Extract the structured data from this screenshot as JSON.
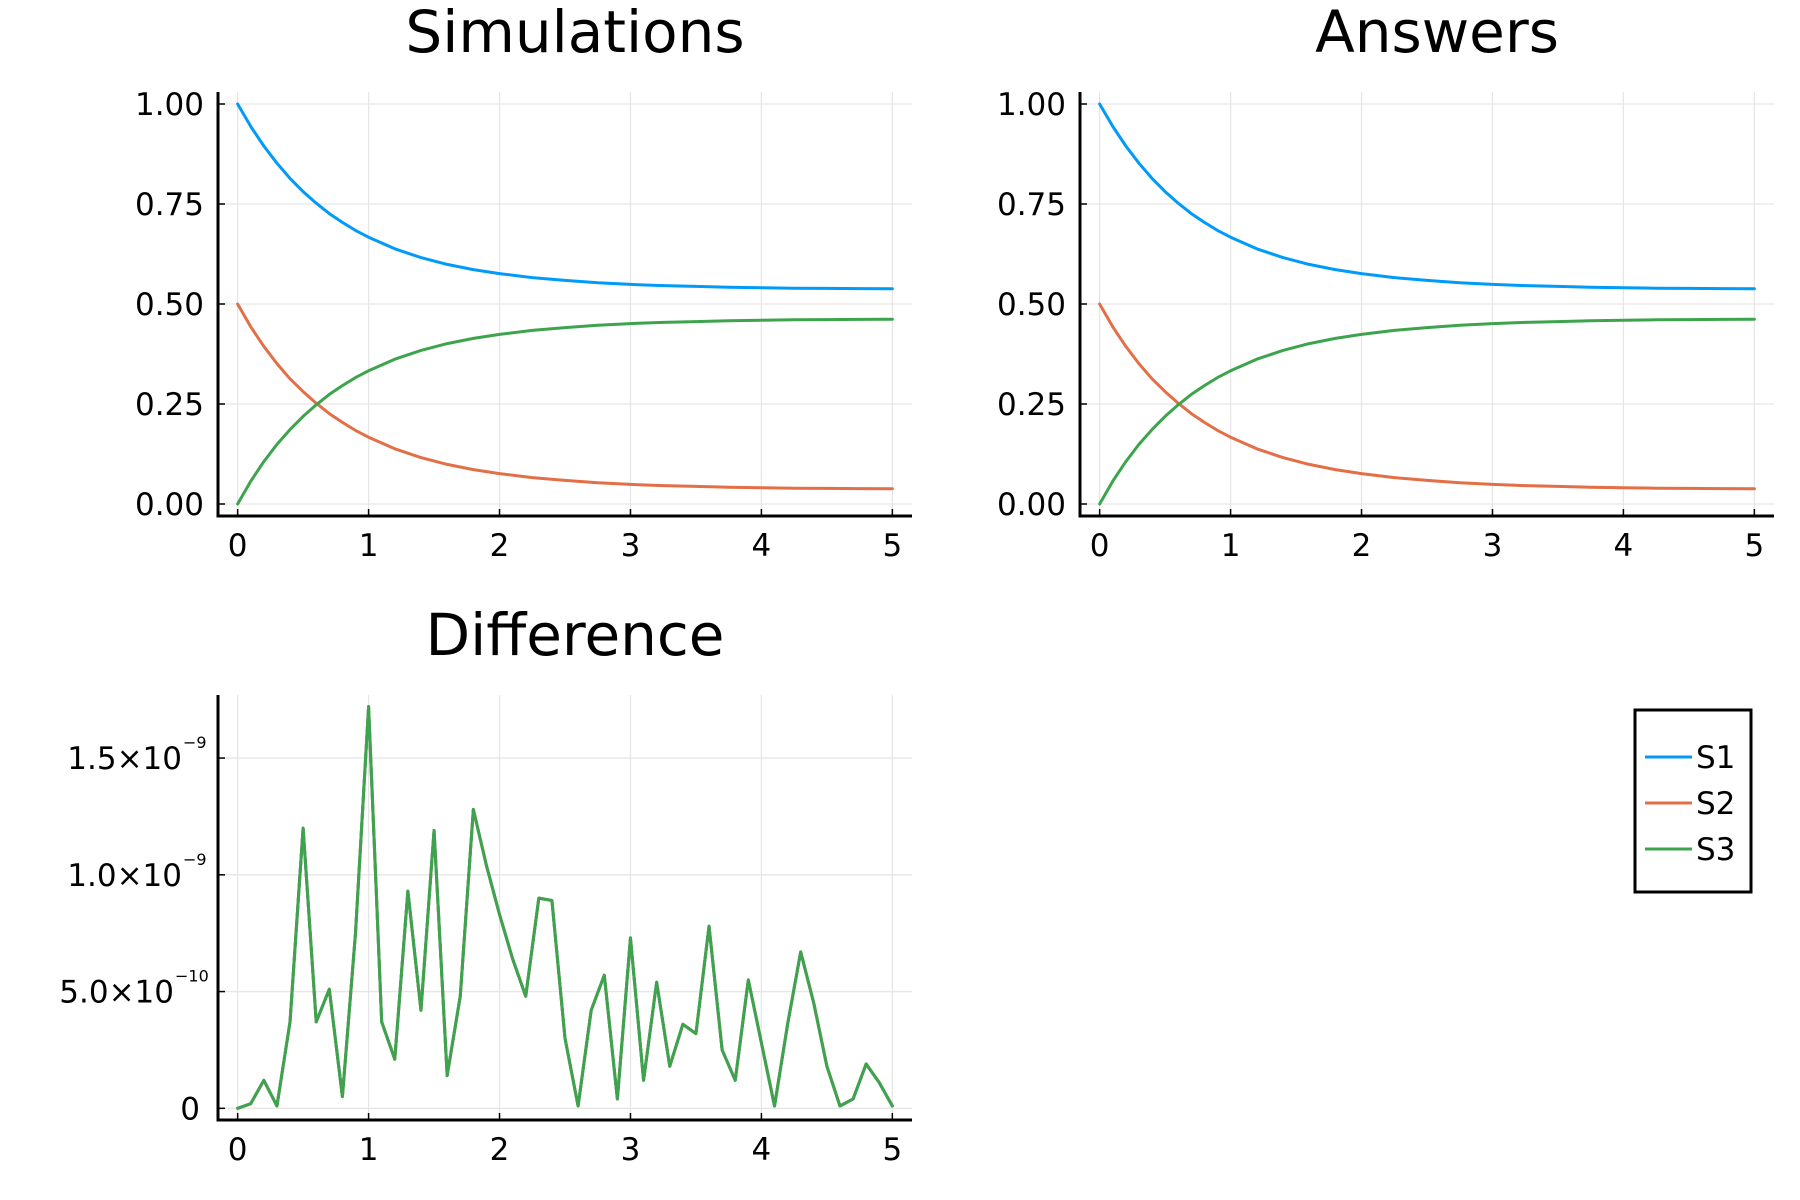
{
  "chart_data": [
    {
      "type": "line",
      "title": "Simulations",
      "xlabel": "",
      "ylabel": "",
      "xlim": [
        -0.15,
        5.15
      ],
      "ylim": [
        -0.03,
        1.03
      ],
      "xticks": [
        0,
        1,
        2,
        3,
        4,
        5
      ],
      "xtick_labels": [
        "0",
        "1",
        "2",
        "3",
        "4",
        "5"
      ],
      "yticks": [
        0,
        0.25,
        0.5,
        0.75,
        1.0
      ],
      "ytick_labels": [
        "0.00",
        "0.25",
        "0.50",
        "0.75",
        "1.00"
      ],
      "grid": true,
      "x": [
        0,
        0.1,
        0.2,
        0.3,
        0.4,
        0.5,
        0.6,
        0.7,
        0.8,
        0.9,
        1.0,
        1.2,
        1.4,
        1.6,
        1.8,
        2.0,
        2.25,
        2.5,
        2.75,
        3.0,
        3.25,
        3.5,
        3.75,
        4.0,
        4.25,
        4.5,
        4.75,
        5.0
      ],
      "series": [
        {
          "name": "S1",
          "color": "#009af9",
          "values": [
            1.0,
            0.944,
            0.895,
            0.852,
            0.814,
            0.781,
            0.752,
            0.726,
            0.704,
            0.684,
            0.667,
            0.638,
            0.616,
            0.599,
            0.586,
            0.576,
            0.566,
            0.559,
            0.553,
            0.549,
            0.546,
            0.544,
            0.542,
            0.5405,
            0.5395,
            0.539,
            0.5385,
            0.538
          ]
        },
        {
          "name": "S2",
          "color": "#e26f46",
          "values": [
            0.5,
            0.443,
            0.394,
            0.351,
            0.313,
            0.281,
            0.252,
            0.226,
            0.204,
            0.184,
            0.167,
            0.138,
            0.116,
            0.099,
            0.086,
            0.076,
            0.066,
            0.059,
            0.053,
            0.049,
            0.046,
            0.044,
            0.042,
            0.0405,
            0.0395,
            0.039,
            0.0385,
            0.038
          ]
        },
        {
          "name": "S3",
          "color": "#3da44d",
          "values": [
            0.0,
            0.057,
            0.106,
            0.149,
            0.186,
            0.219,
            0.248,
            0.274,
            0.296,
            0.316,
            0.333,
            0.362,
            0.384,
            0.401,
            0.414,
            0.424,
            0.434,
            0.441,
            0.447,
            0.451,
            0.454,
            0.456,
            0.458,
            0.4595,
            0.4605,
            0.461,
            0.4615,
            0.462
          ]
        }
      ]
    },
    {
      "type": "line",
      "title": "Answers",
      "xlabel": "",
      "ylabel": "",
      "xlim": [
        -0.15,
        5.15
      ],
      "ylim": [
        -0.03,
        1.03
      ],
      "xticks": [
        0,
        1,
        2,
        3,
        4,
        5
      ],
      "xtick_labels": [
        "0",
        "1",
        "2",
        "3",
        "4",
        "5"
      ],
      "yticks": [
        0,
        0.25,
        0.5,
        0.75,
        1.0
      ],
      "ytick_labels": [
        "0.00",
        "0.25",
        "0.50",
        "0.75",
        "1.00"
      ],
      "grid": true,
      "x": [
        0,
        0.1,
        0.2,
        0.3,
        0.4,
        0.5,
        0.6,
        0.7,
        0.8,
        0.9,
        1.0,
        1.2,
        1.4,
        1.6,
        1.8,
        2.0,
        2.25,
        2.5,
        2.75,
        3.0,
        3.25,
        3.5,
        3.75,
        4.0,
        4.25,
        4.5,
        4.75,
        5.0
      ],
      "series": [
        {
          "name": "S1",
          "color": "#009af9",
          "values": [
            1.0,
            0.944,
            0.895,
            0.852,
            0.814,
            0.781,
            0.752,
            0.726,
            0.704,
            0.684,
            0.667,
            0.638,
            0.616,
            0.599,
            0.586,
            0.576,
            0.566,
            0.559,
            0.553,
            0.549,
            0.546,
            0.544,
            0.542,
            0.5405,
            0.5395,
            0.539,
            0.5385,
            0.538
          ]
        },
        {
          "name": "S2",
          "color": "#e26f46",
          "values": [
            0.5,
            0.443,
            0.394,
            0.351,
            0.313,
            0.281,
            0.252,
            0.226,
            0.204,
            0.184,
            0.167,
            0.138,
            0.116,
            0.099,
            0.086,
            0.076,
            0.066,
            0.059,
            0.053,
            0.049,
            0.046,
            0.044,
            0.042,
            0.0405,
            0.0395,
            0.039,
            0.0385,
            0.038
          ]
        },
        {
          "name": "S3",
          "color": "#3da44d",
          "values": [
            0.0,
            0.057,
            0.106,
            0.149,
            0.186,
            0.219,
            0.248,
            0.274,
            0.296,
            0.316,
            0.333,
            0.362,
            0.384,
            0.401,
            0.414,
            0.424,
            0.434,
            0.441,
            0.447,
            0.451,
            0.454,
            0.456,
            0.458,
            0.4595,
            0.4605,
            0.461,
            0.4615,
            0.462
          ]
        }
      ]
    },
    {
      "type": "line",
      "title": "Difference",
      "xlabel": "",
      "ylabel": "",
      "xlim": [
        -0.15,
        5.15
      ],
      "ylim": [
        -5e-11,
        1.77e-09
      ],
      "xticks": [
        0,
        1,
        2,
        3,
        4,
        5
      ],
      "xtick_labels": [
        "0",
        "1",
        "2",
        "3",
        "4",
        "5"
      ],
      "yticks": [
        0,
        5e-10,
        1e-09,
        1.5e-09
      ],
      "ytick_labels": [
        {
          "mantissa": "0",
          "exponent": ""
        },
        {
          "mantissa": "5.0×10",
          "exponent": "−10"
        },
        {
          "mantissa": "1.0×10",
          "exponent": "−9"
        },
        {
          "mantissa": "1.5×10",
          "exponent": "−9"
        }
      ],
      "grid": true,
      "x": [
        0,
        0.1,
        0.2,
        0.3,
        0.4,
        0.5,
        0.6,
        0.7,
        0.8,
        0.9,
        1.0,
        1.1,
        1.2,
        1.3,
        1.4,
        1.5,
        1.6,
        1.7,
        1.8,
        1.9,
        2.0,
        2.1,
        2.2,
        2.3,
        2.4,
        2.5,
        2.6,
        2.7,
        2.8,
        2.9,
        3.0,
        3.1,
        3.2,
        3.3,
        3.4,
        3.5,
        3.6,
        3.7,
        3.8,
        3.9,
        4.0,
        4.1,
        4.2,
        4.3,
        4.4,
        4.5,
        4.6,
        4.7,
        4.8,
        4.9,
        5.0
      ],
      "series": [
        {
          "name": "S1",
          "color": "#009af9",
          "values": [
            0,
            2e-11,
            1.2e-10,
            1e-11,
            3.7e-10,
            1.2e-09,
            3.7e-10,
            5.1e-10,
            5e-11,
            7.5e-10,
            1.72e-09,
            3.7e-10,
            2.1e-10,
            9.3e-10,
            4.2e-10,
            1.19e-09,
            1.4e-10,
            4.8e-10,
            1.28e-09,
            1.04e-09,
            8.3e-10,
            6.4e-10,
            4.8e-10,
            9e-10,
            8.9e-10,
            3e-10,
            1e-11,
            4.2e-10,
            5.7e-10,
            4e-11,
            7.3e-10,
            1.2e-10,
            5.4e-10,
            1.8e-10,
            3.6e-10,
            3.2e-10,
            7.8e-10,
            2.5e-10,
            1.2e-10,
            5.5e-10,
            2.8e-10,
            1e-11,
            3.6e-10,
            6.7e-10,
            4.5e-10,
            1.8e-10,
            1e-11,
            4e-11,
            1.9e-10,
            1.1e-10,
            1e-11
          ]
        },
        {
          "name": "S2",
          "color": "#e26f46",
          "values": [
            0,
            2e-11,
            1.2e-10,
            1e-11,
            3.7e-10,
            1.2e-09,
            3.7e-10,
            5.1e-10,
            5e-11,
            7.5e-10,
            1.72e-09,
            3.7e-10,
            2.1e-10,
            9.3e-10,
            4.2e-10,
            1.19e-09,
            1.4e-10,
            4.8e-10,
            1.28e-09,
            1.04e-09,
            8.3e-10,
            6.4e-10,
            4.8e-10,
            9e-10,
            8.9e-10,
            3e-10,
            1e-11,
            4.2e-10,
            5.7e-10,
            4e-11,
            7.3e-10,
            1.2e-10,
            5.4e-10,
            1.8e-10,
            3.6e-10,
            3.2e-10,
            7.8e-10,
            2.5e-10,
            1.2e-10,
            5.5e-10,
            2.8e-10,
            1e-11,
            3.6e-10,
            6.7e-10,
            4.5e-10,
            1.8e-10,
            1e-11,
            4e-11,
            1.9e-10,
            1.1e-10,
            1e-11
          ]
        },
        {
          "name": "S3",
          "color": "#3da44d",
          "values": [
            0,
            2e-11,
            1.2e-10,
            1e-11,
            3.7e-10,
            1.2e-09,
            3.7e-10,
            5.1e-10,
            5e-11,
            7.5e-10,
            1.72e-09,
            3.7e-10,
            2.1e-10,
            9.3e-10,
            4.2e-10,
            1.19e-09,
            1.4e-10,
            4.8e-10,
            1.28e-09,
            1.04e-09,
            8.3e-10,
            6.4e-10,
            4.8e-10,
            9e-10,
            8.9e-10,
            3e-10,
            1e-11,
            4.2e-10,
            5.7e-10,
            4e-11,
            7.3e-10,
            1.2e-10,
            5.4e-10,
            1.8e-10,
            3.6e-10,
            3.2e-10,
            7.8e-10,
            2.5e-10,
            1.2e-10,
            5.5e-10,
            2.8e-10,
            1e-11,
            3.6e-10,
            6.7e-10,
            4.5e-10,
            1.8e-10,
            1e-11,
            4e-11,
            1.9e-10,
            1.1e-10,
            1e-11
          ]
        }
      ]
    }
  ],
  "legend": {
    "placement": "bottom-right",
    "entries": [
      {
        "name": "S1",
        "color": "#009af9"
      },
      {
        "name": "S2",
        "color": "#e26f46"
      },
      {
        "name": "S3",
        "color": "#3da44d"
      }
    ]
  }
}
